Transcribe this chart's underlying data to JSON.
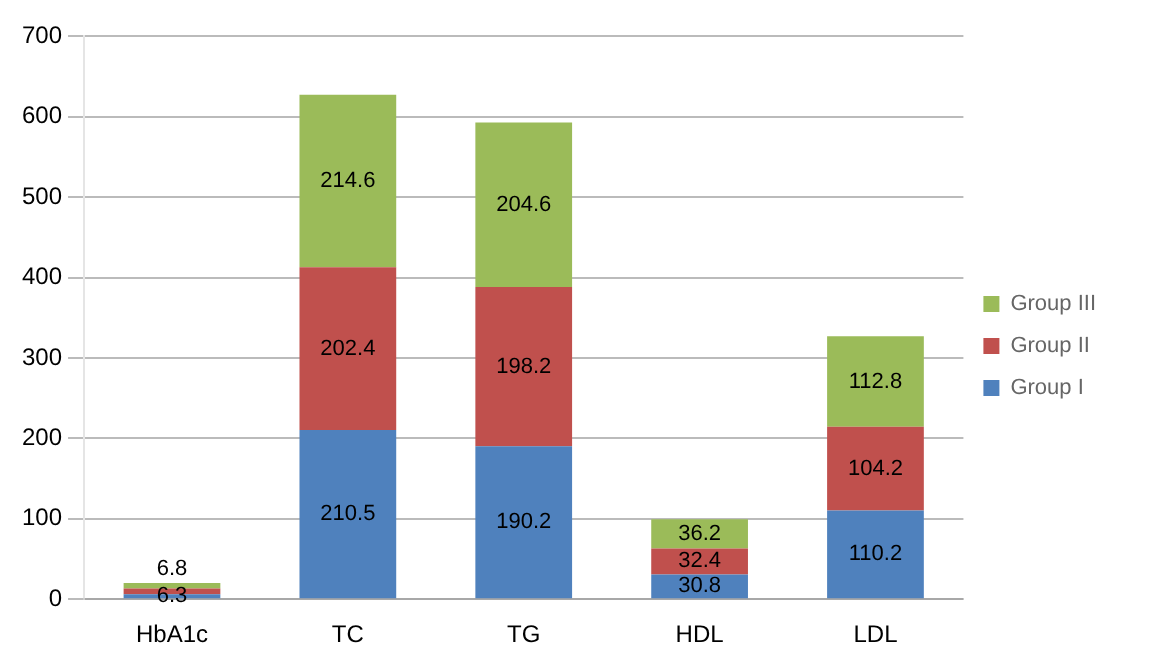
{
  "chart_data": {
    "type": "bar",
    "stacked": true,
    "categories": [
      "HbA1c",
      "TC",
      "TG",
      "HDL",
      "LDL"
    ],
    "series": [
      {
        "name": "Group I",
        "color": "#4f81bd",
        "values": [
          6.3,
          210.5,
          190.2,
          30.8,
          110.2
        ],
        "value_labels": [
          "6.3",
          "210.5",
          "190.2",
          "30.8",
          "110.2"
        ]
      },
      {
        "name": "Group II",
        "color": "#c0504d",
        "values": [
          7,
          202.4,
          198.2,
          32.4,
          104.2
        ],
        "value_labels": [
          null,
          "202.4",
          "198.2",
          "32.4",
          "104.2"
        ]
      },
      {
        "name": "Group III",
        "color": "#9bbb59",
        "values": [
          6.8,
          214.6,
          204.6,
          36.2,
          112.8
        ],
        "value_labels": [
          "6.8",
          "214.6",
          "204.6",
          "36.2",
          "112.8"
        ]
      }
    ],
    "ylim": [
      0,
      700
    ],
    "yticks": [
      0,
      100,
      200,
      300,
      400,
      500,
      600,
      700
    ],
    "grid": "y",
    "legend": "right"
  }
}
